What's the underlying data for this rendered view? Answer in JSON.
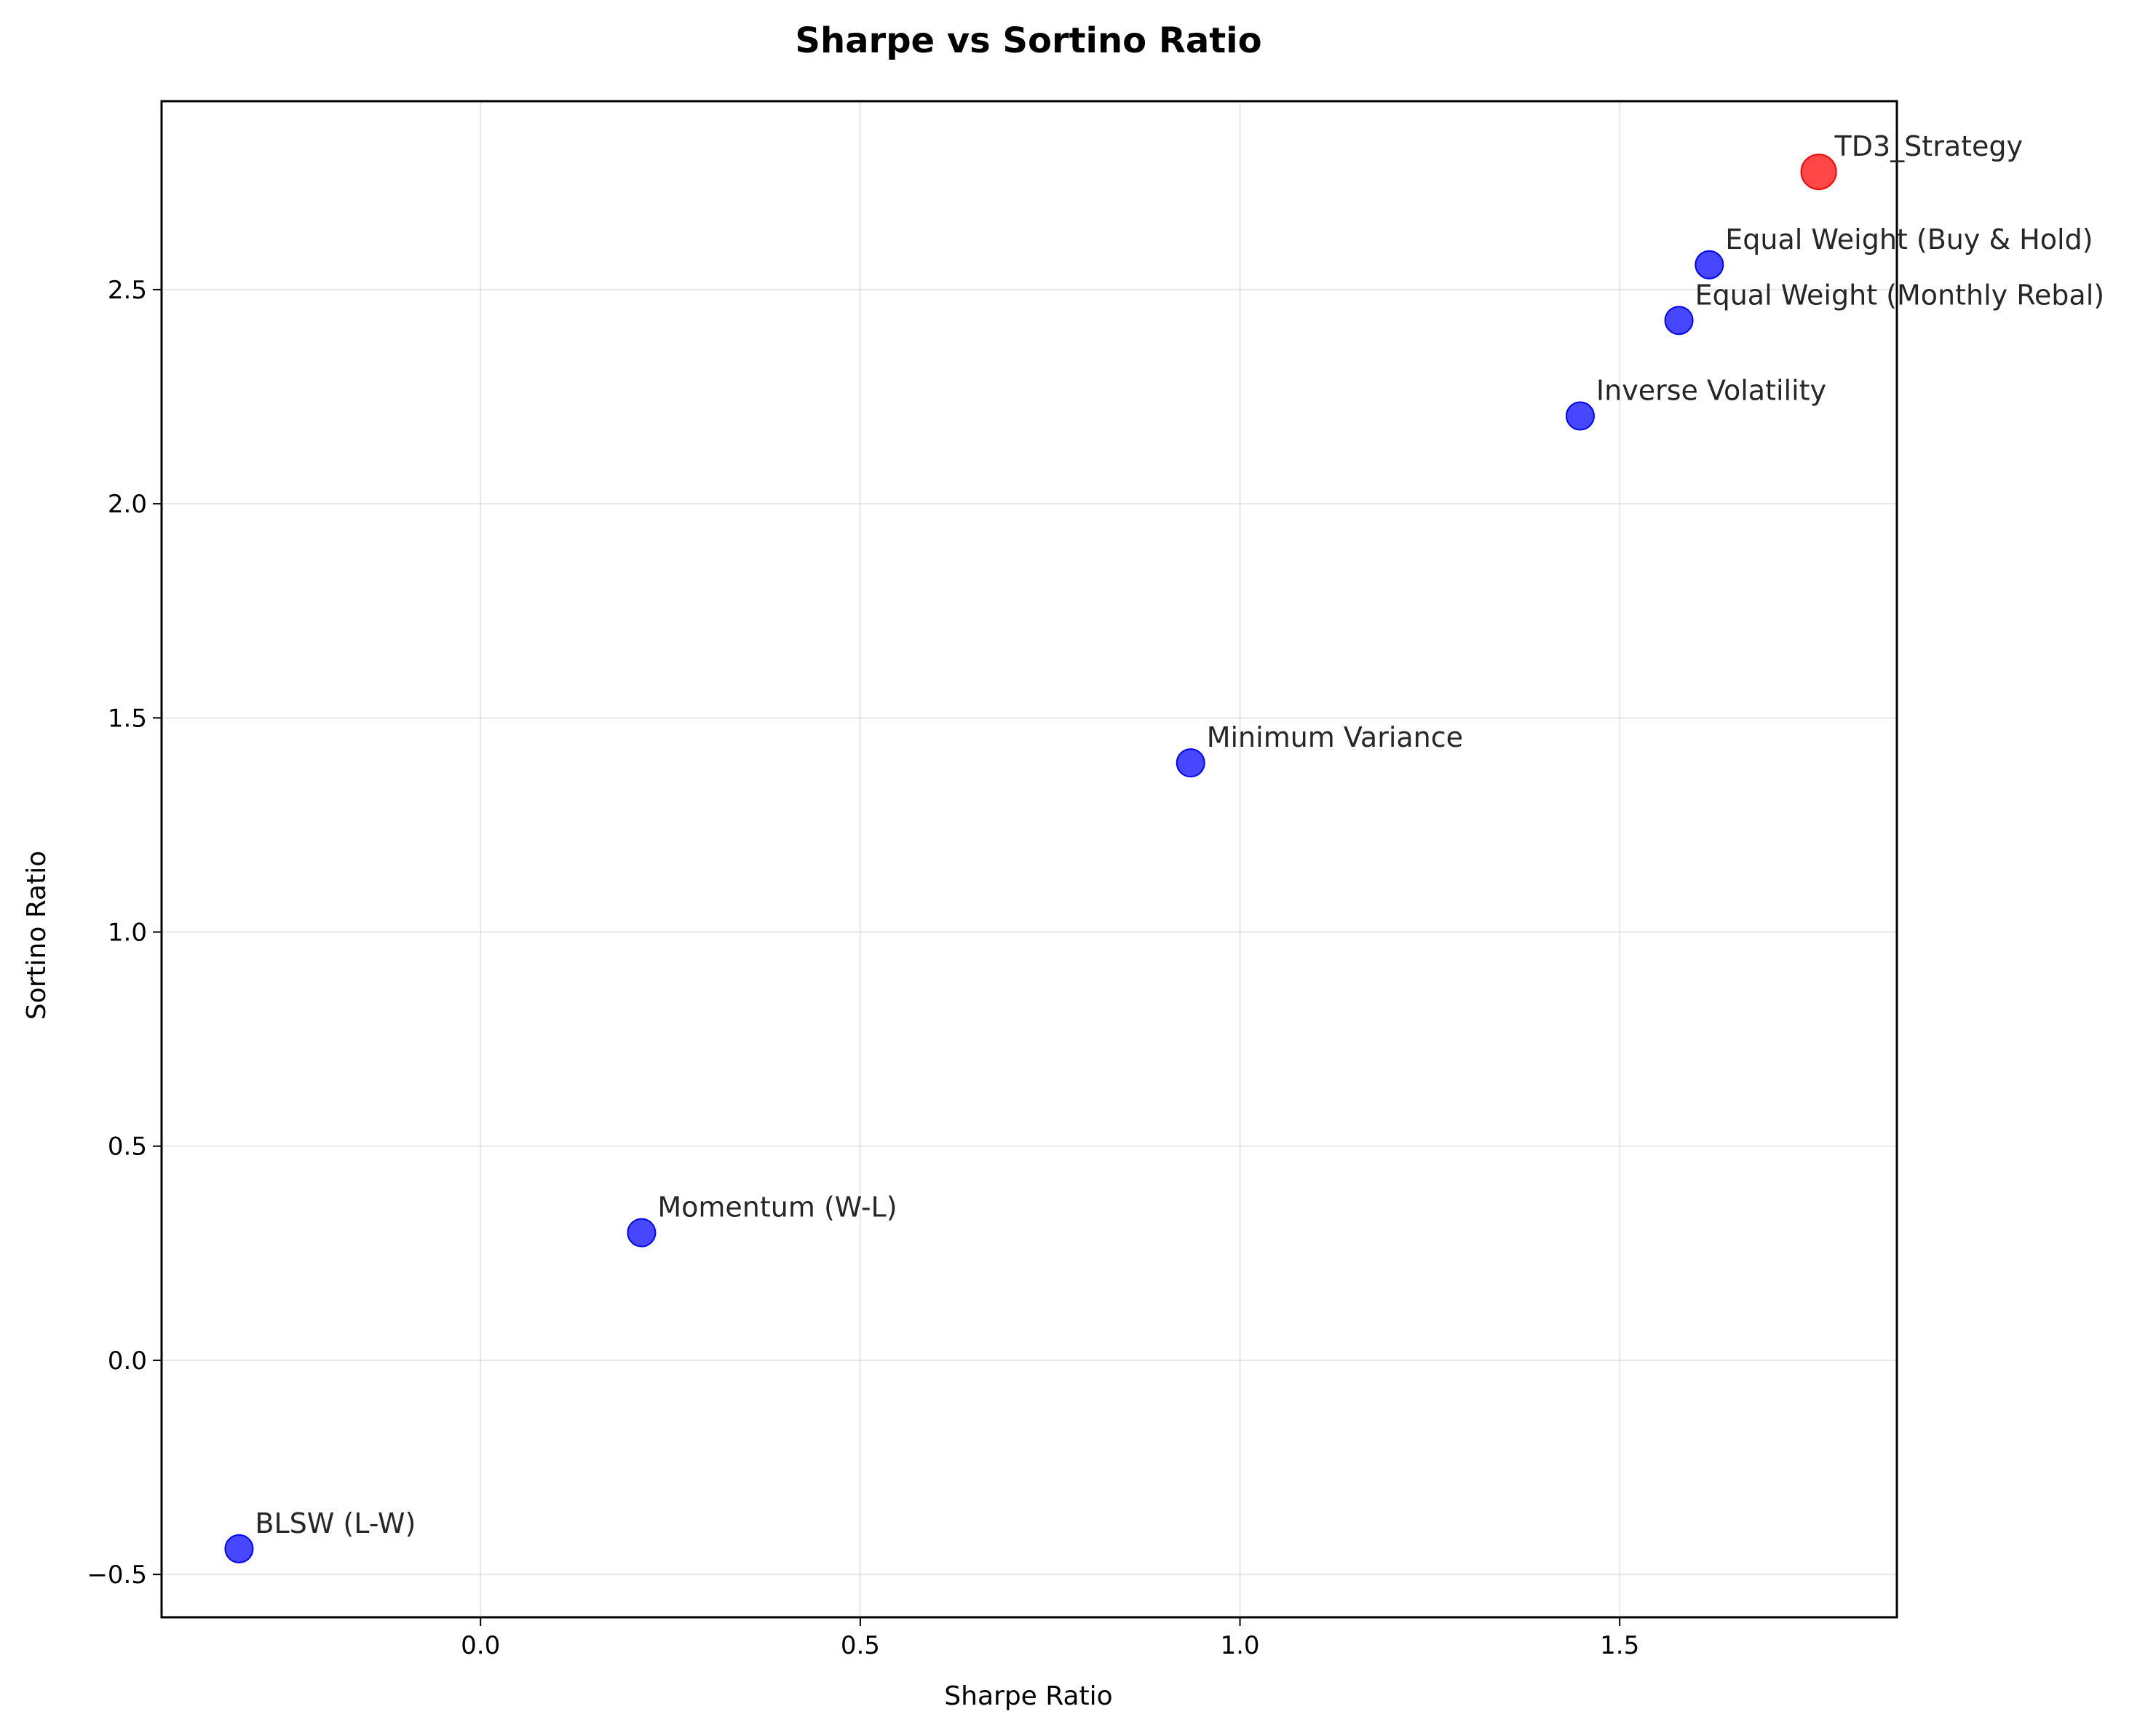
{
  "chart_data": {
    "type": "scatter",
    "title": "Sharpe vs Sortino Ratio",
    "xlabel": "Sharpe Ratio",
    "ylabel": "Sortino Ratio",
    "xlim": [
      -0.42,
      1.865
    ],
    "ylim": [
      -0.6,
      2.94
    ],
    "xticks": [
      0.0,
      0.5,
      1.0,
      1.5
    ],
    "xtick_labels": [
      "0.0",
      "0.5",
      "1.0",
      "1.5"
    ],
    "yticks": [
      -0.5,
      0.0,
      0.5,
      1.0,
      1.5,
      2.0,
      2.5
    ],
    "ytick_labels": [
      "−0.5",
      "0.0",
      "0.5",
      "1.0",
      "1.5",
      "2.0",
      "2.5"
    ],
    "grid": true,
    "points": [
      {
        "label": "TD3_Strategy",
        "x": 1.762,
        "y": 2.775,
        "color": "#ff0000",
        "highlight": true
      },
      {
        "label": "Equal Weight (Buy & Hold)",
        "x": 1.618,
        "y": 2.558,
        "color": "#0000ff",
        "highlight": false
      },
      {
        "label": "Equal Weight (Monthly Rebal)",
        "x": 1.578,
        "y": 2.428,
        "color": "#0000ff",
        "highlight": false
      },
      {
        "label": "Inverse Volatility",
        "x": 1.448,
        "y": 2.205,
        "color": "#0000ff",
        "highlight": false
      },
      {
        "label": "Minimum Variance",
        "x": 0.935,
        "y": 1.395,
        "color": "#0000ff",
        "highlight": false
      },
      {
        "label": "Momentum (W-L)",
        "x": 0.212,
        "y": 0.298,
        "color": "#0000ff",
        "highlight": false
      },
      {
        "label": "BLSW (L-W)",
        "x": -0.318,
        "y": -0.44,
        "color": "#0000ff",
        "highlight": false
      }
    ]
  }
}
